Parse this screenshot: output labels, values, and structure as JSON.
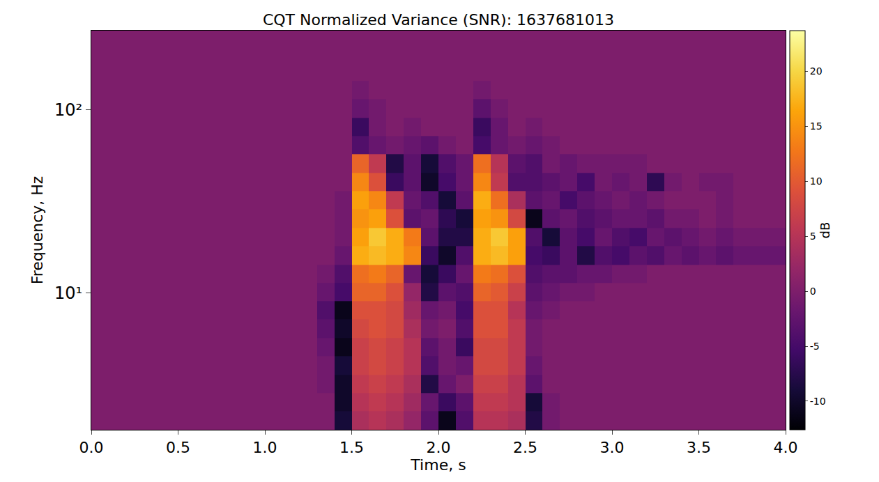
{
  "chart_data": {
    "type": "heatmap",
    "title": "CQT Normalized Variance (SNR): 1637681013",
    "x_label": "Time, s",
    "y_label": "Frequency, Hz",
    "log": "y",
    "xlim": [
      0,
      4
    ],
    "ylim": [
      1.78,
      271
    ],
    "xticks": [
      {
        "value": 0,
        "label": "0.0"
      },
      0.5,
      {
        "value": 1,
        "label": "1.0"
      },
      1.5,
      {
        "value": 2,
        "label": "2.0"
      },
      2.5,
      {
        "value": 3,
        "label": "3.0"
      },
      3.5,
      {
        "value": 4,
        "label": "4.0"
      }
    ],
    "yticks": [
      {
        "value": 10,
        "label": "10¹"
      },
      {
        "value": 100,
        "label": "10²"
      }
    ],
    "colorbar_label": "dB",
    "colorbar_range": [
      -12.6,
      23.7
    ],
    "colorbar_ticks": [
      -10,
      -5,
      0,
      5,
      10,
      15,
      20
    ],
    "x_edges": [
      0,
      0.1,
      0.2,
      0.3,
      0.4,
      0.5,
      0.6,
      0.7,
      0.8,
      0.9,
      1.0,
      1.1,
      1.2,
      1.3,
      1.4,
      1.5,
      1.6,
      1.7,
      1.8,
      1.9,
      2.0,
      2.1,
      2.2,
      2.3,
      2.4,
      2.5,
      2.6,
      2.7,
      2.8,
      2.9,
      3.0,
      3.1,
      3.2,
      3.3,
      3.4,
      3.5,
      3.6,
      3.7,
      3.8,
      3.9,
      4.0
    ],
    "y_edges": [
      1.78,
      2.24,
      2.83,
      3.56,
      4.49,
      5.66,
      7.13,
      8.98,
      11.31,
      14.25,
      17.96,
      22.62,
      28.51,
      35.92,
      45.25,
      57.02,
      71.84,
      90.51,
      114.0,
      143.7,
      181.0,
      228.1,
      287.4
    ],
    "cells": [
      [
        0,
        0,
        0,
        0,
        0,
        0,
        0,
        0,
        0,
        0,
        0,
        0,
        0,
        0,
        -9,
        4,
        5,
        4,
        2,
        -3,
        -11,
        -4,
        5,
        5,
        4,
        -8,
        -1,
        0,
        0,
        0,
        0,
        0,
        0,
        0,
        0,
        0,
        0,
        0,
        0,
        0
      ],
      [
        0,
        0,
        0,
        0,
        0,
        0,
        0,
        0,
        0,
        0,
        0,
        0,
        0,
        0,
        -10,
        5,
        6,
        5,
        3,
        -2,
        -6,
        -3,
        6,
        6,
        5,
        -9,
        -1,
        0,
        0,
        0,
        0,
        0,
        0,
        0,
        0,
        0,
        0,
        0,
        0,
        0
      ],
      [
        0,
        0,
        0,
        0,
        0,
        0,
        0,
        0,
        0,
        0,
        0,
        0,
        0,
        -1,
        -10,
        6,
        7,
        6,
        4,
        -8,
        -2,
        0,
        7,
        7,
        5,
        -3,
        0,
        0,
        0,
        0,
        0,
        0,
        0,
        0,
        0,
        0,
        0,
        0,
        0,
        0
      ],
      [
        0,
        0,
        0,
        0,
        0,
        0,
        0,
        0,
        0,
        0,
        0,
        0,
        0,
        -1,
        -9,
        7,
        8,
        7,
        5,
        -4,
        -1,
        -2,
        8,
        8,
        6,
        -2,
        0,
        0,
        0,
        0,
        0,
        0,
        0,
        0,
        0,
        0,
        0,
        0,
        0,
        0
      ],
      [
        0,
        0,
        0,
        0,
        0,
        0,
        0,
        0,
        0,
        0,
        0,
        0,
        0,
        -2,
        -11,
        7,
        8,
        7,
        5,
        -3,
        -1,
        -6,
        8,
        8,
        6,
        -1,
        0,
        0,
        0,
        0,
        0,
        0,
        0,
        0,
        0,
        0,
        0,
        0,
        0,
        0
      ],
      [
        0,
        0,
        0,
        0,
        0,
        0,
        0,
        0,
        0,
        0,
        0,
        0,
        0,
        -3,
        -10,
        8,
        9,
        8,
        4,
        -1,
        0,
        -4,
        9,
        9,
        6,
        -1,
        0,
        0,
        0,
        0,
        0,
        0,
        0,
        0,
        0,
        0,
        0,
        0,
        0,
        0
      ],
      [
        0,
        0,
        0,
        0,
        0,
        0,
        0,
        0,
        0,
        0,
        0,
        0,
        0,
        -4,
        -11,
        9,
        9,
        8,
        3,
        -2,
        -1,
        -5,
        9,
        9,
        5,
        -2,
        -1,
        0,
        0,
        0,
        0,
        0,
        0,
        0,
        0,
        0,
        0,
        0,
        0,
        0
      ],
      [
        0,
        0,
        0,
        0,
        0,
        0,
        0,
        0,
        0,
        0,
        0,
        0,
        0,
        -2,
        -5,
        11,
        11,
        9,
        2,
        -8,
        -3,
        -4,
        11,
        10,
        7,
        -3,
        -2,
        -1,
        -1,
        0,
        0,
        0,
        0,
        0,
        0,
        0,
        0,
        0,
        0,
        0
      ],
      [
        0,
        0,
        0,
        0,
        0,
        0,
        0,
        0,
        0,
        0,
        0,
        0,
        0,
        -1,
        -4,
        12,
        13,
        11,
        -2,
        -9,
        -6,
        -2,
        13,
        12,
        9,
        -4,
        -3,
        -3,
        -2,
        -2,
        -1,
        -1,
        0,
        0,
        0,
        0,
        0,
        0,
        0,
        0
      ],
      [
        0,
        0,
        0,
        0,
        0,
        0,
        0,
        0,
        0,
        0,
        0,
        0,
        0,
        0,
        -2,
        17,
        18,
        17,
        14,
        -6,
        -10,
        -4,
        17,
        18,
        16,
        -5,
        -6,
        -3,
        -8,
        -4,
        -5,
        -3,
        -4,
        -2,
        -3,
        -2,
        -3,
        -2,
        -2,
        -2
      ],
      [
        0,
        0,
        0,
        0,
        0,
        0,
        0,
        0,
        0,
        0,
        0,
        0,
        0,
        0,
        -1,
        16,
        19,
        17,
        13,
        -3,
        -8,
        -8,
        17,
        19,
        16,
        -4,
        -9,
        -3,
        -5,
        -2,
        -4,
        -5,
        -2,
        -3,
        -2,
        -1,
        -2,
        -1,
        -1,
        -1
      ],
      [
        0,
        0,
        0,
        0,
        0,
        0,
        0,
        0,
        0,
        0,
        0,
        0,
        0,
        0,
        -1,
        15,
        16,
        9,
        -3,
        -2,
        -7,
        -9,
        16,
        15,
        8,
        -11,
        -3,
        -2,
        -4,
        -3,
        -2,
        -2,
        -3,
        -1,
        -1,
        0,
        -1,
        0,
        0,
        0
      ],
      [
        0,
        0,
        0,
        0,
        0,
        0,
        0,
        0,
        0,
        0,
        0,
        0,
        0,
        0,
        -1,
        16,
        14,
        6,
        -2,
        -4,
        -9,
        -3,
        17,
        12,
        4,
        -3,
        -2,
        -5,
        -3,
        -2,
        -1,
        -2,
        -1,
        0,
        0,
        0,
        -1,
        0,
        0,
        0
      ],
      [
        0,
        0,
        0,
        0,
        0,
        0,
        0,
        0,
        0,
        0,
        0,
        0,
        0,
        0,
        0,
        14,
        9,
        -6,
        -3,
        -10,
        -5,
        -2,
        14,
        6,
        -4,
        -4,
        -3,
        -2,
        -5,
        -1,
        -2,
        -1,
        -7,
        -1,
        0,
        -1,
        -1,
        0,
        0,
        0
      ],
      [
        0,
        0,
        0,
        0,
        0,
        0,
        0,
        0,
        0,
        0,
        0,
        0,
        0,
        0,
        0,
        11,
        6,
        -8,
        -3,
        -9,
        -4,
        -2,
        12,
        5,
        -3,
        -4,
        -1,
        -2,
        -1,
        -1,
        -1,
        -1,
        0,
        0,
        0,
        0,
        0,
        0,
        0,
        0
      ],
      [
        0,
        0,
        0,
        0,
        0,
        0,
        0,
        0,
        0,
        0,
        0,
        0,
        0,
        0,
        0,
        -4,
        -2,
        -1,
        -2,
        -3,
        -1,
        0,
        -5,
        -2,
        -1,
        -2,
        -1,
        0,
        0,
        0,
        0,
        0,
        0,
        0,
        0,
        0,
        0,
        0,
        0,
        0
      ],
      [
        0,
        0,
        0,
        0,
        0,
        0,
        0,
        0,
        0,
        0,
        0,
        0,
        0,
        0,
        0,
        -6,
        -1,
        0,
        -1,
        0,
        0,
        0,
        -6,
        -2,
        0,
        -1,
        0,
        0,
        0,
        0,
        0,
        0,
        0,
        0,
        0,
        0,
        0,
        0,
        0,
        0
      ],
      [
        0,
        0,
        0,
        0,
        0,
        0,
        0,
        0,
        0,
        0,
        0,
        0,
        0,
        0,
        0,
        -2,
        -1,
        0,
        0,
        0,
        0,
        0,
        -3,
        -1,
        0,
        0,
        0,
        0,
        0,
        0,
        0,
        0,
        0,
        0,
        0,
        0,
        0,
        0,
        0,
        0
      ],
      [
        0,
        0,
        0,
        0,
        0,
        0,
        0,
        0,
        0,
        0,
        0,
        0,
        0,
        0,
        0,
        -1,
        0,
        0,
        0,
        0,
        0,
        0,
        -1,
        0,
        0,
        0,
        0,
        0,
        0,
        0,
        0,
        0,
        0,
        0,
        0,
        0,
        0,
        0,
        0,
        0
      ],
      [
        0,
        0,
        0,
        0,
        0,
        0,
        0,
        0,
        0,
        0,
        0,
        0,
        0,
        0,
        0,
        0,
        0,
        0,
        0,
        0,
        0,
        0,
        0,
        0,
        0,
        0,
        0,
        0,
        0,
        0,
        0,
        0,
        0,
        0,
        0,
        0,
        0,
        0,
        0,
        0
      ],
      [
        0,
        0,
        0,
        0,
        0,
        0,
        0,
        0,
        0,
        0,
        0,
        0,
        0,
        0,
        0,
        0,
        0,
        0,
        0,
        0,
        0,
        0,
        0,
        0,
        0,
        0,
        0,
        0,
        0,
        0,
        0,
        0,
        0,
        0,
        0,
        0,
        0,
        0,
        0,
        0
      ],
      [
        0,
        0,
        0,
        0,
        0,
        0,
        0,
        0,
        0,
        0,
        0,
        0,
        0,
        0,
        0,
        0,
        0,
        0,
        0,
        0,
        0,
        0,
        0,
        0,
        0,
        0,
        0,
        0,
        0,
        0,
        0,
        0,
        0,
        0,
        0,
        0,
        0,
        0,
        0,
        0
      ]
    ]
  }
}
